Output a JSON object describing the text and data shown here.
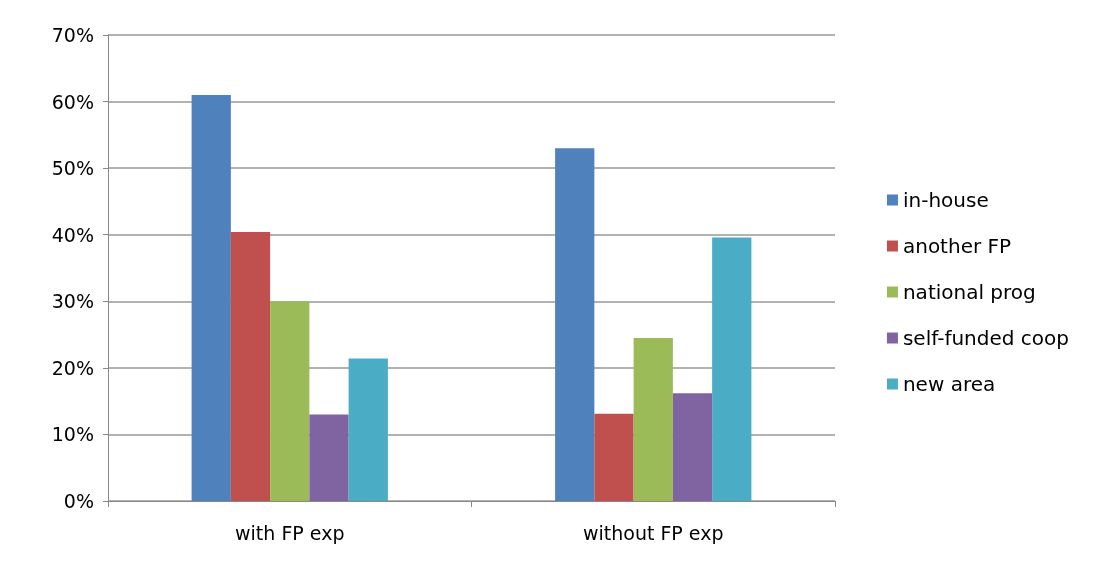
{
  "chart_data": {
    "type": "bar",
    "categories": [
      "with FP exp",
      "without FP exp"
    ],
    "series": [
      {
        "name": "in-house",
        "color": "#4f81bd",
        "values": [
          61,
          53
        ]
      },
      {
        "name": "another FP",
        "color": "#c0504d",
        "values": [
          40.4,
          13.1
        ]
      },
      {
        "name": "national prog",
        "color": "#9bbb59",
        "values": [
          30,
          24.5
        ]
      },
      {
        "name": "self-funded coop",
        "color": "#8064a2",
        "values": [
          13,
          16.2
        ]
      },
      {
        "name": "new area",
        "color": "#4bacc6",
        "values": [
          21.4,
          39.6
        ]
      }
    ],
    "ylim": [
      0,
      70
    ],
    "yticks": [
      {
        "value": 0,
        "label": "0%"
      },
      {
        "value": 10,
        "label": "10%"
      },
      {
        "value": 20,
        "label": "20%"
      },
      {
        "value": 30,
        "label": "30%"
      },
      {
        "value": 40,
        "label": "40%"
      },
      {
        "value": 50,
        "label": "50%"
      },
      {
        "value": 60,
        "label": "60%"
      },
      {
        "value": 70,
        "label": "70%"
      }
    ],
    "grid": "y",
    "legend": "right"
  }
}
